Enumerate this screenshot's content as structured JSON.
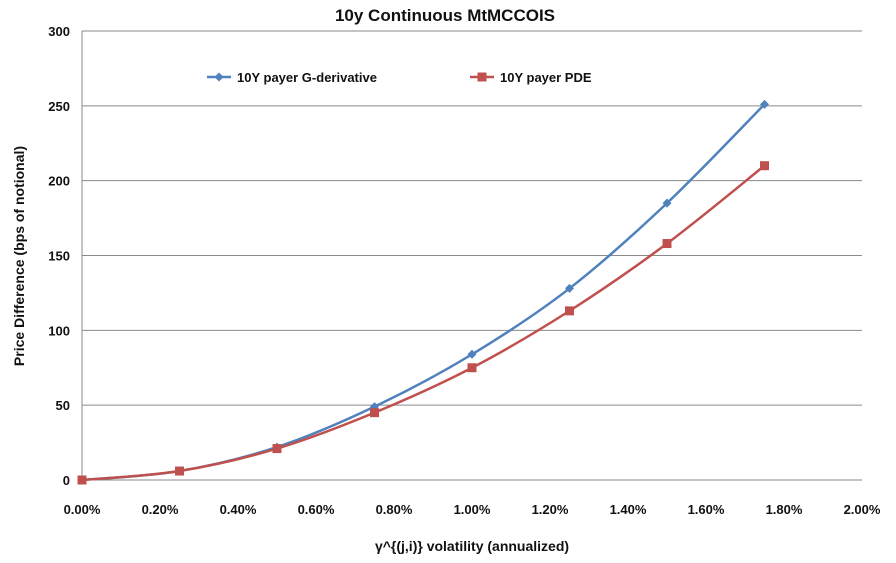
{
  "chart_data": {
    "type": "line",
    "title": "10y Continuous MtMCCOIS",
    "xlabel": "γ^{(j,i)} volatility (annualized)",
    "ylabel": "Price Difference (bps of notional)",
    "xlim": [
      0,
      2.0
    ],
    "ylim": [
      0,
      300
    ],
    "x_ticks": [
      "0.00%",
      "0.20%",
      "0.40%",
      "0.60%",
      "0.80%",
      "1.00%",
      "1.20%",
      "1.40%",
      "1.60%",
      "1.80%",
      "2.00%"
    ],
    "x_tick_values": [
      0,
      0.2,
      0.4,
      0.6,
      0.8,
      1.0,
      1.2,
      1.4,
      1.6,
      1.8,
      2.0
    ],
    "y_ticks": [
      "0",
      "50",
      "100",
      "150",
      "200",
      "250",
      "300"
    ],
    "y_tick_values": [
      0,
      50,
      100,
      150,
      200,
      250,
      300
    ],
    "grid": "horizontal",
    "legend_position": "top",
    "x": [
      0,
      0.25,
      0.5,
      0.75,
      1.0,
      1.25,
      1.5,
      1.75
    ],
    "series": [
      {
        "name": "10Y payer G-derivative",
        "color": "#4f81bd",
        "marker": "diamond",
        "values": [
          0,
          6,
          22,
          49,
          84,
          128,
          185,
          251
        ]
      },
      {
        "name": "10Y payer PDE",
        "color": "#c0504d",
        "marker": "square",
        "values": [
          0,
          6,
          21,
          45,
          75,
          113,
          158,
          210
        ]
      }
    ]
  }
}
